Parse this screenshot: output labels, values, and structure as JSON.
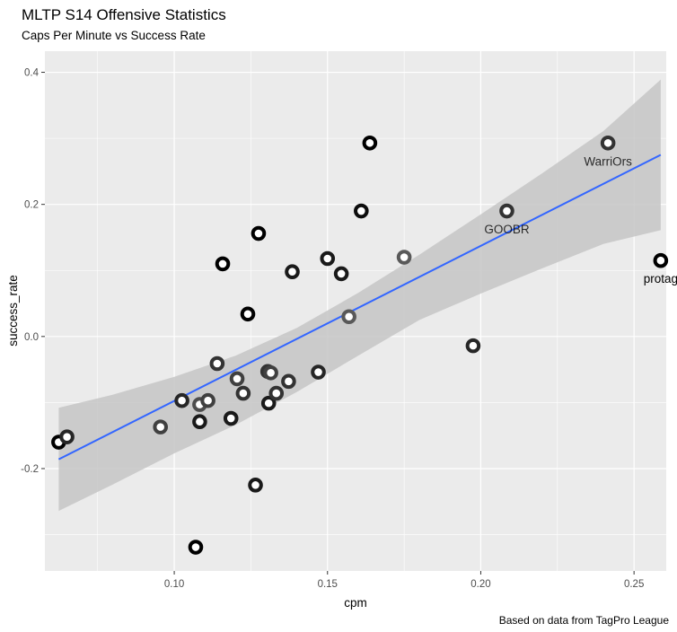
{
  "title": "MLTP S14 Offensive Statistics",
  "subtitle": "Caps Per Minute vs Success Rate",
  "caption": "Based on data from TagPro League",
  "chart_data": {
    "type": "scatter",
    "title": "MLTP S14 Offensive Statistics",
    "subtitle": "Caps Per Minute vs Success Rate",
    "xlabel": "cpm",
    "ylabel": "success_rate",
    "xlim": [
      0.0578,
      0.2605
    ],
    "ylim": [
      -0.355,
      0.432
    ],
    "x_ticks": [
      0.1,
      0.15,
      0.2,
      0.25
    ],
    "x_tick_labels": [
      "0.10",
      "0.15",
      "0.20",
      "0.25"
    ],
    "y_ticks": [
      -0.2,
      0.0,
      0.2,
      0.4
    ],
    "y_tick_labels": [
      "-0.2",
      "0.0",
      "0.2",
      "0.4"
    ],
    "grid": true,
    "legend": "none",
    "colors": {
      "panel": "#ebebeb",
      "grid": "#ffffff",
      "ribbon": "#c6c6c6",
      "line": "#3366ff",
      "points": "#000000",
      "point_labels": "#000000"
    },
    "points": [
      {
        "x": 0.0623,
        "y": -0.16,
        "shade": 0.0
      },
      {
        "x": 0.065,
        "y": -0.152,
        "shade": 0.15
      },
      {
        "x": 0.0955,
        "y": -0.137,
        "shade": 0.25
      },
      {
        "x": 0.1025,
        "y": -0.097,
        "shade": 0.15
      },
      {
        "x": 0.107,
        "y": -0.319,
        "shade": 0.0
      },
      {
        "x": 0.1083,
        "y": -0.103,
        "shade": 0.3
      },
      {
        "x": 0.1083,
        "y": -0.129,
        "shade": 0.1
      },
      {
        "x": 0.111,
        "y": -0.097,
        "shade": 0.25
      },
      {
        "x": 0.114,
        "y": -0.041,
        "shade": 0.2
      },
      {
        "x": 0.1158,
        "y": 0.11,
        "shade": 0.0
      },
      {
        "x": 0.1185,
        "y": -0.124,
        "shade": 0.1
      },
      {
        "x": 0.1205,
        "y": -0.064,
        "shade": 0.25
      },
      {
        "x": 0.1225,
        "y": -0.086,
        "shade": 0.2
      },
      {
        "x": 0.124,
        "y": 0.034,
        "shade": 0.0
      },
      {
        "x": 0.1265,
        "y": -0.225,
        "shade": 0.1
      },
      {
        "x": 0.1275,
        "y": 0.156,
        "shade": 0.0
      },
      {
        "x": 0.1305,
        "y": -0.053,
        "shade": 0.2
      },
      {
        "x": 0.1308,
        "y": -0.101,
        "shade": 0.1
      },
      {
        "x": 0.1315,
        "y": -0.055,
        "shade": 0.25
      },
      {
        "x": 0.1333,
        "y": -0.086,
        "shade": 0.2
      },
      {
        "x": 0.1373,
        "y": -0.068,
        "shade": 0.2
      },
      {
        "x": 0.1385,
        "y": 0.098,
        "shade": 0.1
      },
      {
        "x": 0.147,
        "y": -0.054,
        "shade": 0.15
      },
      {
        "x": 0.15,
        "y": 0.118,
        "shade": 0.1
      },
      {
        "x": 0.1545,
        "y": 0.095,
        "shade": 0.1
      },
      {
        "x": 0.157,
        "y": 0.03,
        "shade": 0.35
      },
      {
        "x": 0.161,
        "y": 0.19,
        "shade": 0.05
      },
      {
        "x": 0.1638,
        "y": 0.293,
        "shade": 0.0
      },
      {
        "x": 0.175,
        "y": 0.12,
        "shade": 0.35
      },
      {
        "x": 0.1975,
        "y": -0.014,
        "shade": 0.15
      },
      {
        "x": 0.2085,
        "y": 0.19,
        "shade": 0.2,
        "label": "GOOBR"
      },
      {
        "x": 0.2415,
        "y": 0.293,
        "shade": 0.2,
        "label": "WarriOrs"
      },
      {
        "x": 0.2587,
        "y": 0.115,
        "shade": 0.0,
        "label": "protag"
      }
    ],
    "fit_line": {
      "x": [
        0.0623,
        0.2587
      ],
      "y": [
        -0.186,
        0.275
      ]
    },
    "confidence_band": {
      "x": [
        0.0623,
        0.08,
        0.1,
        0.12,
        0.14,
        0.16,
        0.18,
        0.2,
        0.22,
        0.24,
        0.2587
      ],
      "upper": [
        -0.108,
        -0.088,
        -0.061,
        -0.029,
        0.013,
        0.066,
        0.124,
        0.185,
        0.247,
        0.311,
        0.389
      ],
      "lower": [
        -0.264,
        -0.224,
        -0.177,
        -0.134,
        -0.084,
        -0.029,
        0.025,
        0.065,
        0.103,
        0.14,
        0.161
      ]
    }
  }
}
